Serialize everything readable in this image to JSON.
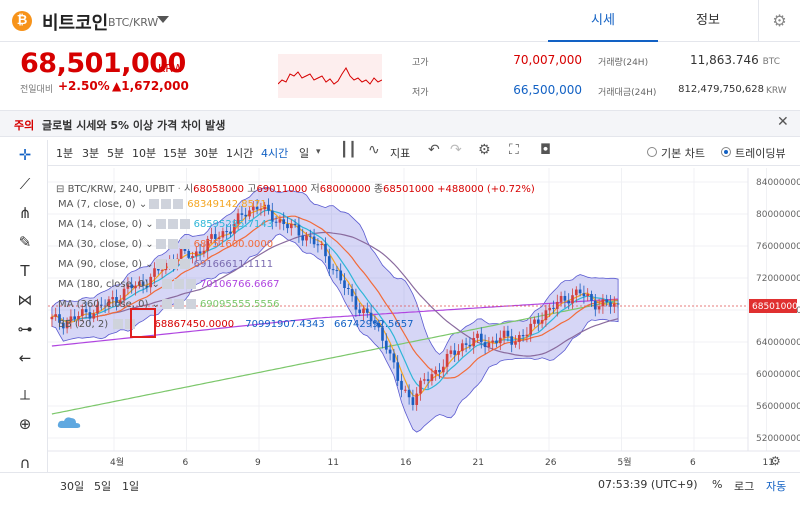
{
  "header": {
    "coin_symbol": "₿",
    "coin_name": "비트코인",
    "pair": "BTC/KRW",
    "tabs": [
      "시세",
      "정보"
    ],
    "settings_icon": "gear-icon"
  },
  "ticker": {
    "price": "68,501,000",
    "unit": "KRW",
    "prev_label": "전일대비",
    "change_pct": "+2.50%",
    "change_abs": "▲1,672,000",
    "high_label": "고가",
    "high": "70,007,000",
    "low_label": "저가",
    "low": "66,500,000",
    "volume_label": "거래량(24H)",
    "volume": "11,863.746",
    "volume_unit": "BTC",
    "amount_label": "거래대금(24H)",
    "amount": "812,479,750,628",
    "amount_unit": "KRW"
  },
  "notice": {
    "label": "주의",
    "text": "글로벌 시세와 5% 이상 가격 차이 발생",
    "close": "✕"
  },
  "toolbar": {
    "intervals": [
      "1분",
      "3분",
      "5분",
      "10분",
      "15분",
      "30분",
      "1시간",
      "4시간",
      "일"
    ],
    "active_interval": "4시간",
    "indicator_label": "지표",
    "basic_chart": "기본 차트",
    "trading_view": "트레이딩뷰"
  },
  "legend": {
    "symbol_line": "BTC/KRW, 240, UPBIT",
    "o_label": "시",
    "o": "68058000",
    "h_label": "고",
    "h": "69011000",
    "l_label": "저",
    "l": "68000000",
    "c_label": "종",
    "c": "68501000",
    "change": "+488000 (+0.72%)",
    "studies": [
      {
        "name": "MA (7, close, 0)",
        "value": "68349142.8571",
        "color": "#f4a623"
      },
      {
        "name": "MA (14, close, 0)",
        "value": "68595285.7143",
        "color": "#2fb6d8"
      },
      {
        "name": "MA (30, close, 0)",
        "value": "68751600.0000",
        "color": "#f26b3a"
      },
      {
        "name": "MA (90, close, 0)",
        "value": "69166611.1111",
        "color": "#7a6bb0"
      },
      {
        "name": "MA (180, close, 0)",
        "value": "70106766.6667",
        "color": "#b045e0"
      },
      {
        "name": "MA (360, close, 0)",
        "value": "69095555.5556",
        "color": "#7cc76b"
      }
    ],
    "bb_name": "BB (20, 2)",
    "bb_values": [
      "68867450.0000",
      "70991907.4343",
      "66742992.5657"
    ]
  },
  "chart_data": {
    "type": "candlestick",
    "y_ticks": [
      "84000000",
      "80000000",
      "76000000",
      "72000000",
      "68000000",
      "64000000",
      "60000000",
      "56000000",
      "52000000"
    ],
    "ylim": [
      51000000,
      85000000
    ],
    "x_ticks": [
      "4월",
      "6",
      "9",
      "11",
      "16",
      "21",
      "26",
      "5월",
      "6",
      "11",
      "16"
    ],
    "last_price_label": "68501000",
    "close_path": [
      66800000,
      66500000,
      67200000,
      67800000,
      68500000,
      69500000,
      70800000,
      71200000,
      72500000,
      73800000,
      75000000,
      74800000,
      76200000,
      77500000,
      78200000,
      80300000,
      81000000,
      79800000,
      78800000,
      77900000,
      77000000,
      75500000,
      72800000,
      70200000,
      68000000,
      66500000,
      63800000,
      58500000,
      56800000,
      59200000,
      60600000,
      62300000,
      63800000,
      64200000,
      63900000,
      64600000,
      64300000,
      65200000,
      67300000,
      68400000,
      69600000,
      70200000,
      69000000,
      68700000,
      68501000
    ]
  },
  "left_tools": [
    "crosshair-icon",
    "trendline-icon",
    "fib-icon",
    "brush-icon",
    "text-icon",
    "pattern-icon",
    "measure-icon",
    "back-arrow-icon",
    "ruler-icon",
    "zoom-icon",
    "magnet-icon",
    "eraser-icon"
  ],
  "footer": {
    "ranges": [
      "30일",
      "5일",
      "1일"
    ],
    "time": "07:53:39 (UTC+9)",
    "percent": "%",
    "log": "로그",
    "auto": "자동"
  }
}
